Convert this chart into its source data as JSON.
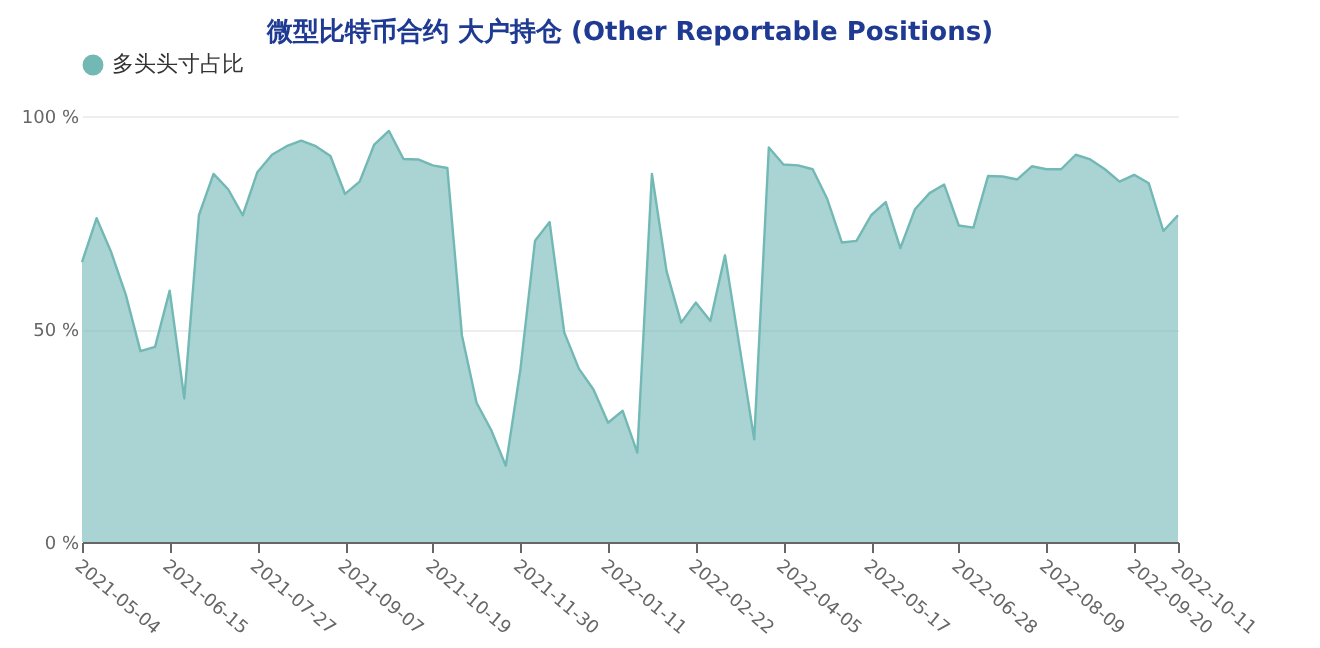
{
  "chart_data": {
    "type": "area",
    "title": "微型比特币合约 大户持仓 (Other Reportable Positions)",
    "x": [
      "2021-05-04",
      "2021-05-11",
      "2021-05-18",
      "2021-05-25",
      "2021-06-01",
      "2021-06-08",
      "2021-06-15",
      "2021-06-22",
      "2021-06-29",
      "2021-07-06",
      "2021-07-13",
      "2021-07-20",
      "2021-07-27",
      "2021-08-03",
      "2021-08-10",
      "2021-08-17",
      "2021-08-24",
      "2021-08-31",
      "2021-09-07",
      "2021-09-14",
      "2021-09-21",
      "2021-09-28",
      "2021-10-05",
      "2021-10-12",
      "2021-10-19",
      "2021-10-26",
      "2021-11-02",
      "2021-11-09",
      "2021-11-16",
      "2021-11-23",
      "2021-11-30",
      "2021-12-07",
      "2021-12-14",
      "2021-12-21",
      "2021-12-28",
      "2022-01-04",
      "2022-01-11",
      "2022-01-18",
      "2022-01-25",
      "2022-02-01",
      "2022-02-08",
      "2022-02-15",
      "2022-02-22",
      "2022-03-01",
      "2022-03-08",
      "2022-03-15",
      "2022-03-22",
      "2022-03-29",
      "2022-04-05",
      "2022-04-12",
      "2022-04-19",
      "2022-04-26",
      "2022-05-03",
      "2022-05-10",
      "2022-05-17",
      "2022-05-24",
      "2022-05-31",
      "2022-06-07",
      "2022-06-14",
      "2022-06-21",
      "2022-06-28",
      "2022-07-05",
      "2022-07-12",
      "2022-07-19",
      "2022-07-26",
      "2022-08-02",
      "2022-08-09",
      "2022-08-16",
      "2022-08-23",
      "2022-08-30",
      "2022-09-06",
      "2022-09-13",
      "2022-09-20",
      "2022-09-27",
      "2022-10-04",
      "2022-10-11"
    ],
    "series": [
      {
        "name": "多头头寸占比",
        "color": "#72b8b5",
        "values": [
          65.7,
          76,
          68,
          58,
          44.8,
          45.8,
          59,
          33.7,
          76.7,
          86.4,
          82.8,
          76.7,
          86.8,
          90.9,
          92.9,
          94.2,
          92.9,
          90.6,
          81.7,
          84.6,
          93.3,
          96.5,
          89.9,
          89.8,
          88.4,
          87.8,
          48.5,
          32.7,
          26.3,
          17.9,
          40.5,
          70.7,
          75.1,
          49.2,
          40.7,
          35.8,
          28,
          30.8,
          21,
          86.4,
          63.6,
          51.5,
          56.2,
          51.9,
          67.3,
          45.8,
          24.1,
          92.6,
          88.6,
          88.4,
          87.5,
          80.5,
          70.3,
          70.7,
          76.7,
          79.8,
          69,
          78.1,
          81.9,
          83.9,
          74.3,
          73.8,
          85.9,
          85.8,
          85.1,
          88.2,
          87.5,
          87.5,
          90.9,
          89.8,
          87.5,
          84.6,
          86.2,
          84.2,
          73,
          76.7
        ]
      }
    ],
    "xlim": [
      "2021-05-04",
      "2022-10-11"
    ],
    "xticks": [
      "2021-05-04",
      "2021-06-15",
      "2021-07-27",
      "2021-09-07",
      "2021-10-19",
      "2021-11-30",
      "2022-01-11",
      "2022-02-22",
      "2022-04-05",
      "2022-05-17",
      "2022-06-28",
      "2022-08-09",
      "2022-09-20",
      "2022-10-11"
    ],
    "ylim": [
      0,
      100
    ],
    "yticks": [
      {
        "value": 0,
        "label": "0 %"
      },
      {
        "value": 50,
        "label": "50 %"
      },
      {
        "value": 100,
        "label": "100 %"
      }
    ],
    "grid": "y",
    "legend": "top"
  }
}
